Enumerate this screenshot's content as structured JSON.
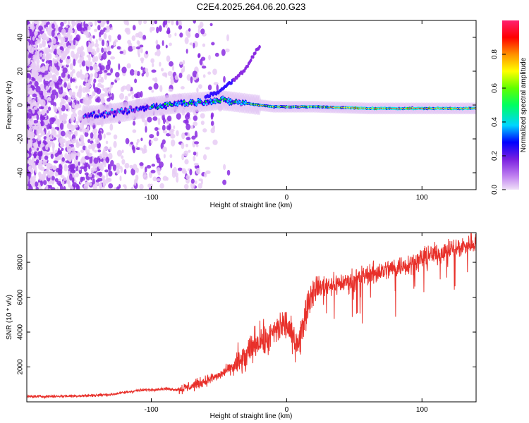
{
  "title": "C2E4.2025.264.06.20.G23",
  "chart_data": [
    {
      "type": "heatmap",
      "xlabel": "Height of straight line (km)",
      "ylabel": "Frequency (Hz)",
      "xlim": [
        -192,
        140
      ],
      "ylim": [
        -50,
        50
      ],
      "xticks": [
        -100,
        0,
        100
      ],
      "xtick_labels": [
        "-100",
        "0",
        "100"
      ],
      "yticks": [
        -40,
        -20,
        0,
        20,
        40
      ],
      "ytick_labels": [
        "-40",
        "-20",
        "0",
        "20",
        "40"
      ],
      "description_series": [
        {
          "name": "spectral peak frequency",
          "x": [
            -140,
            -120,
            -100,
            -80,
            -60,
            -50,
            -40,
            -30,
            -20,
            -10,
            0,
            20,
            60,
            100,
            140
          ],
          "y": [
            -6,
            -4,
            -1,
            1,
            2,
            3,
            2,
            1,
            0,
            -1,
            -1,
            -1,
            -2,
            -2,
            -2
          ]
        },
        {
          "name": "upper branch",
          "x": [
            -60,
            -50,
            -40,
            -35,
            -30,
            -20
          ],
          "y": [
            5,
            8,
            14,
            18,
            22,
            35
          ]
        }
      ],
      "colorbar": {
        "label": "Normalized spectral amplitude",
        "range": [
          0,
          1
        ],
        "ticks": [
          0.0,
          0.2,
          0.4,
          0.6,
          0.8
        ],
        "tick_labels": [
          "0.0",
          "0.2",
          "0.4",
          "0.6",
          "0.8"
        ],
        "colors": [
          "#e8ccf5",
          "#8a2be2",
          "#0000ff",
          "#00e5ff",
          "#00ff00",
          "#ffff00",
          "#ff8c00",
          "#ff0000",
          "#ff2060"
        ]
      }
    },
    {
      "type": "line",
      "xlabel": "Height of straight line (km)",
      "ylabel": "SNR (10 * v/v)",
      "xlim": [
        -192,
        140
      ],
      "ylim": [
        0,
        9700
      ],
      "xticks": [
        -100,
        0,
        100
      ],
      "xtick_labels": [
        "-100",
        "0",
        "100"
      ],
      "yticks": [
        2000,
        4000,
        6000,
        8000
      ],
      "ytick_labels": [
        "2000",
        "4000",
        "6000",
        "8000"
      ],
      "series": [
        {
          "name": "SNR",
          "color": "#e8302a",
          "x": [
            -192,
            -170,
            -150,
            -130,
            -110,
            -90,
            -80,
            -70,
            -60,
            -50,
            -40,
            -30,
            -25,
            -20,
            -15,
            -10,
            -5,
            0,
            5,
            10,
            15,
            20,
            30,
            40,
            50,
            60,
            70,
            80,
            90,
            100,
            110,
            120,
            130,
            140
          ],
          "y": [
            300,
            320,
            350,
            420,
            650,
            750,
            700,
            900,
            1200,
            1500,
            2000,
            2500,
            3200,
            3600,
            3400,
            3900,
            4300,
            4500,
            3500,
            3600,
            5500,
            6500,
            6700,
            6800,
            7000,
            7300,
            7500,
            7700,
            7900,
            8200,
            8500,
            8700,
            8900,
            9200
          ]
        }
      ]
    }
  ]
}
